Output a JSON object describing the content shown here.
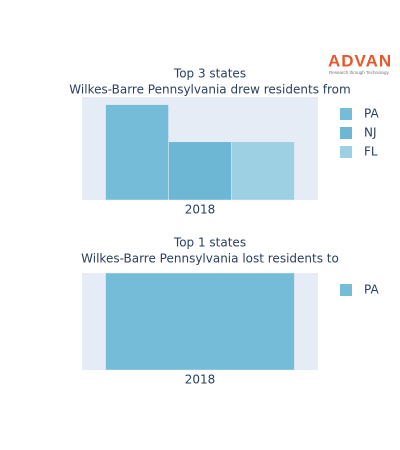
{
  "logo": {
    "name": "ADVAN",
    "tagline": "Research through Technology"
  },
  "chart_data": [
    {
      "type": "bar",
      "title": "Top 3 states",
      "subtitle": "Wilkes-Barre Pennsylvania drew residents from",
      "categories": [
        "2018"
      ],
      "series": [
        {
          "name": "PA",
          "color": "#74bcd8",
          "values": [
            1
          ]
        },
        {
          "name": "NJ",
          "color": "#6db7d4",
          "values": [
            0.61
          ]
        },
        {
          "name": "FL",
          "color": "#9dd0e3",
          "values": [
            0.61
          ]
        }
      ],
      "ylim": [
        0,
        1.08
      ]
    },
    {
      "type": "bar",
      "title": "Top 1 states",
      "subtitle": "Wilkes-Barre Pennsylvania lost residents to",
      "categories": [
        "2018"
      ],
      "series": [
        {
          "name": "PA",
          "color": "#74bcd8",
          "values": [
            1
          ]
        }
      ],
      "ylim": [
        0,
        1.0
      ]
    }
  ]
}
